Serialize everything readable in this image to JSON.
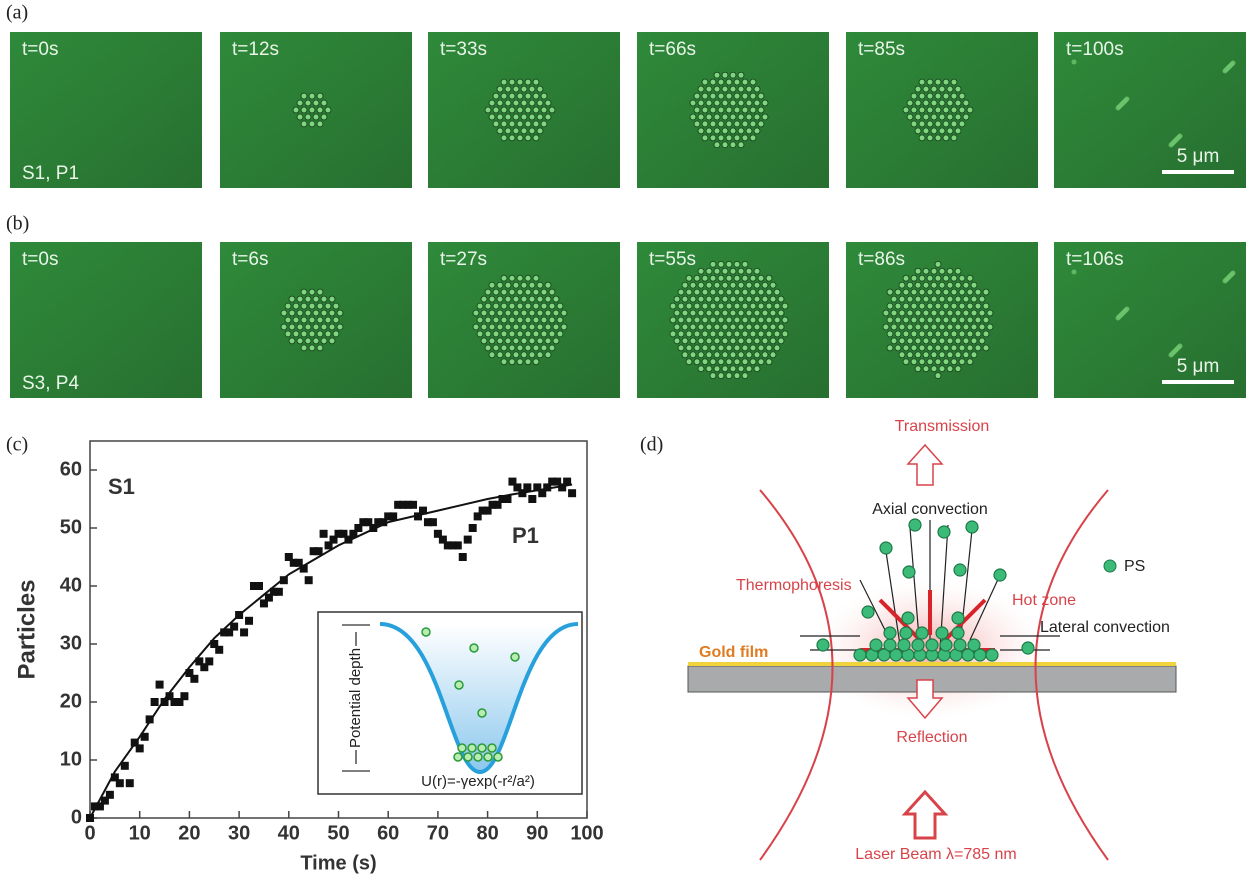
{
  "panels": {
    "a": {
      "label": "(a)",
      "frames": [
        "t=0s",
        "t=12s",
        "t=33s",
        "t=66s",
        "t=85s",
        "t=100s"
      ],
      "sample": "S1, P1",
      "scale": "5 μm"
    },
    "b": {
      "label": "(b)",
      "frames": [
        "t=0s",
        "t=6s",
        "t=27s",
        "t=55s",
        "t=86s",
        "t=106s"
      ],
      "sample": "S3, P4",
      "scale": "5 μm"
    },
    "c": {
      "label": "(c)"
    },
    "d": {
      "label": "(d)",
      "transmission": "Transmission",
      "axial": "Axial convection",
      "ps": "PS",
      "thermophoresis": "Thermophoresis",
      "hot_zone": "Hot zone",
      "lateral": "Lateral convection",
      "gold": "Gold film",
      "reflection": "Reflection",
      "laser": "Laser Beam λ=785 nm"
    }
  },
  "chart_data": {
    "type": "scatter",
    "x_label": "Time (s)",
    "y_label": "Particles",
    "annotations": [
      "S1",
      "P1"
    ],
    "inset": {
      "axis_label": "Potential depth",
      "formula": "U(r)=-γexp(-r²/a²)"
    },
    "xlim": [
      0,
      100
    ],
    "ylim": [
      0,
      65
    ],
    "xticks": [
      0,
      10,
      20,
      30,
      40,
      50,
      60,
      70,
      80,
      90,
      100
    ],
    "yticks": [
      0,
      10,
      20,
      30,
      40,
      50,
      60
    ],
    "series": [
      {
        "color": "#111111",
        "x": [
          0,
          1,
          2,
          3,
          4,
          5,
          6,
          7,
          8,
          9,
          10,
          11,
          12,
          13,
          14,
          15,
          16,
          17,
          18,
          19,
          20,
          21,
          22,
          23,
          24,
          25,
          26,
          27,
          28,
          29,
          30,
          31,
          32,
          33,
          34,
          35,
          36,
          37,
          38,
          39,
          40,
          41,
          42,
          43,
          44,
          45,
          46,
          47,
          48,
          49,
          50,
          51,
          52,
          53,
          54,
          55,
          56,
          57,
          58,
          59,
          60,
          61,
          62,
          63,
          64,
          65,
          66,
          67,
          68,
          69,
          70,
          71,
          72,
          73,
          74,
          75,
          76,
          77,
          78,
          79,
          80,
          81,
          82,
          83,
          84,
          85,
          86,
          87,
          88,
          89,
          90,
          91,
          92,
          93,
          94,
          95,
          96,
          97
        ],
        "values": [
          0,
          2,
          2,
          3,
          4,
          7,
          6,
          9,
          6,
          13,
          12,
          14,
          17,
          20,
          23,
          20,
          21,
          20,
          20,
          21,
          25,
          24,
          27,
          26,
          27,
          30,
          29,
          32,
          32,
          33,
          35,
          32,
          34,
          40,
          40,
          37,
          38,
          39,
          39,
          41,
          45,
          44,
          44,
          43,
          41,
          46,
          46,
          49,
          47,
          48,
          49,
          49,
          48,
          49,
          50,
          51,
          51,
          50,
          51,
          51,
          52,
          52,
          54,
          54,
          54,
          54,
          52,
          53,
          51,
          51,
          49,
          48,
          47,
          47,
          47,
          45,
          48,
          50,
          52,
          53,
          53,
          54,
          54,
          55,
          55,
          58,
          57,
          56,
          57,
          55,
          57,
          56,
          57,
          58,
          58,
          57,
          58,
          56
        ]
      },
      {
        "color": "#111111",
        "style": "line",
        "x": [
          0,
          5,
          10,
          15,
          20,
          25,
          30,
          35,
          40,
          45,
          50,
          55,
          60,
          65,
          70,
          75,
          80,
          85,
          90,
          97
        ],
        "values": [
          0,
          8,
          14,
          20.5,
          26,
          31,
          35,
          38.5,
          42,
          44.5,
          47,
          49,
          51,
          52,
          53,
          54,
          55,
          55.8,
          56.5,
          57.5
        ]
      }
    ]
  }
}
